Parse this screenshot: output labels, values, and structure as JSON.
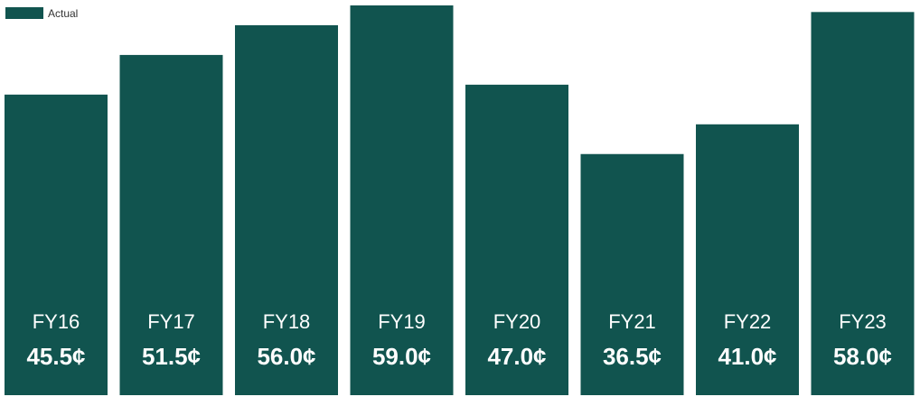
{
  "chart_data": {
    "type": "bar",
    "title": "",
    "xlabel": "",
    "ylabel": "",
    "categories": [
      "FY16",
      "FY17",
      "FY18",
      "FY19",
      "FY20",
      "FY21",
      "FY22",
      "FY23"
    ],
    "series": [
      {
        "name": "Actual",
        "values": [
          45.5,
          51.5,
          56.0,
          59.0,
          47.0,
          36.5,
          41.0,
          58.0
        ],
        "labels": [
          "45.5¢",
          "51.5¢",
          "56.0¢",
          "59.0¢",
          "47.0¢",
          "36.5¢",
          "41.0¢",
          "58.0¢"
        ]
      }
    ],
    "ylim": [
      0,
      59
    ],
    "grid": false,
    "legend_position": "top-left",
    "colors": {
      "bar": "#11544f",
      "label_text": "#ffffff"
    }
  }
}
